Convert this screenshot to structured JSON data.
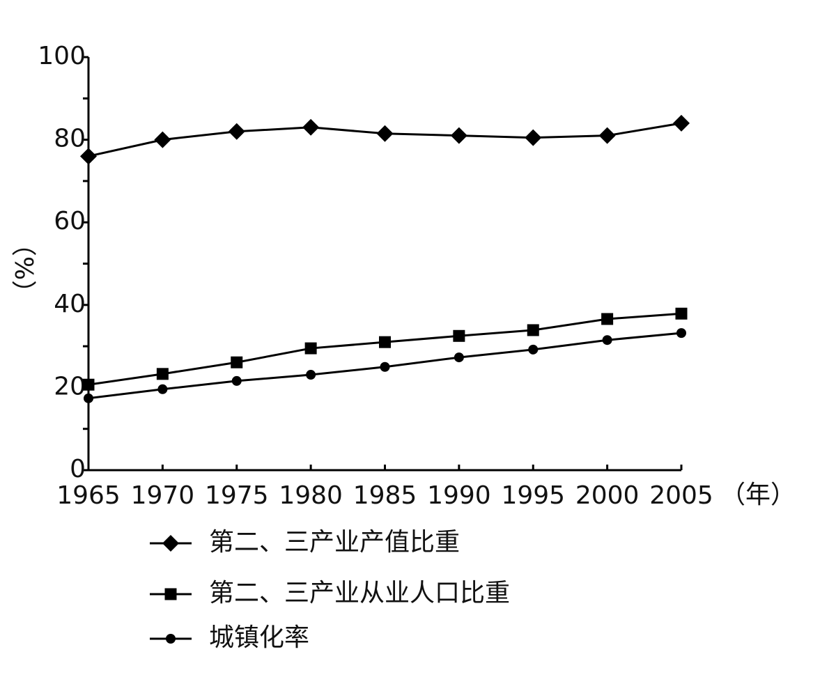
{
  "chart_data": {
    "type": "line",
    "x_label": "（年）",
    "y_label": "（%）",
    "x": [
      1965,
      1970,
      1975,
      1980,
      1985,
      1990,
      1995,
      2000,
      2005
    ],
    "xlim": [
      1965,
      2005
    ],
    "xticks": [
      1965,
      1970,
      1975,
      1980,
      1985,
      1990,
      1995,
      2000,
      2005
    ],
    "ylim": [
      0,
      100
    ],
    "yticks": [
      0,
      20,
      40,
      60,
      80,
      100
    ],
    "yminorticks": [
      10,
      30,
      50,
      70,
      90
    ],
    "grid": false,
    "legend": "bottom",
    "series": [
      {
        "name": "第二、三产业产值比重",
        "color": "#000000",
        "marker": "diamond",
        "values": [
          76,
          80,
          82,
          83,
          81.5,
          81,
          80.5,
          81,
          84
        ]
      },
      {
        "name": "第二、三产业从业人口比重",
        "color": "#000000",
        "marker": "square",
        "values": [
          20.7,
          23.3,
          26.1,
          29.5,
          31,
          32.5,
          33.9,
          36.6,
          37.9
        ]
      },
      {
        "name": "城镇化率",
        "color": "#000000",
        "marker": "circle",
        "values": [
          17.4,
          19.6,
          21.6,
          23.1,
          25,
          27.3,
          29.2,
          31.5,
          33.2
        ]
      }
    ]
  }
}
